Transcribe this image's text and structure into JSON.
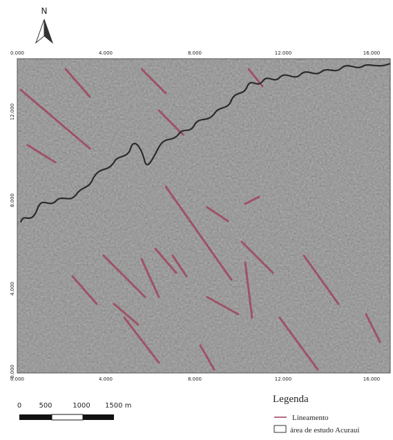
{
  "north_arrow": {
    "label": "N"
  },
  "map": {
    "top_labels": [
      "0.000",
      "4.000",
      "8.000",
      "12.000",
      "16.000"
    ],
    "bottom_labels": [
      "0.000",
      "4.000",
      "8.000",
      "12.000",
      "16.000"
    ],
    "left_labels": [
      "12.000",
      "8.000",
      "4.000",
      "0.000"
    ]
  },
  "scale_bar": {
    "labels": [
      "0",
      "500",
      "1000",
      "1500 m"
    ]
  },
  "legend": {
    "title": "Legenda",
    "items": [
      "Lineamento",
      "área de estudo Acurauí"
    ]
  }
}
